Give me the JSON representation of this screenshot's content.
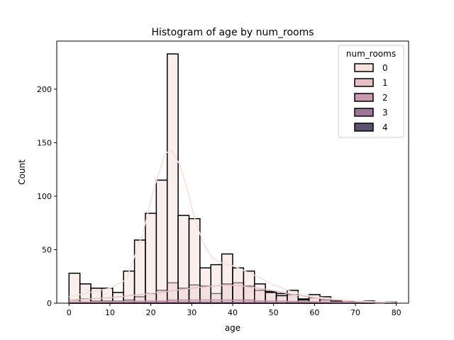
{
  "chart_data": {
    "type": "bar",
    "title": "Histogram of age by num_rooms",
    "xlabel": "age",
    "ylabel": "Count",
    "xlim": [
      -3,
      83
    ],
    "ylim": [
      0,
      245
    ],
    "xticks": [
      0,
      10,
      20,
      30,
      40,
      50,
      60,
      70,
      80
    ],
    "yticks": [
      0,
      50,
      100,
      150,
      200
    ],
    "bin_edges": [
      0,
      2.6667,
      5.3333,
      8,
      10.6667,
      13.3333,
      16,
      18.6667,
      21.3333,
      24,
      26.6667,
      29.3333,
      32,
      34.6667,
      37.3333,
      40,
      42.6667,
      45.3333,
      48,
      50.6667,
      53.3333,
      56,
      58.6667,
      61.3333,
      64,
      66.6667,
      69.3333,
      72,
      74.6667,
      77.3333,
      80
    ],
    "legend": {
      "title": "num_rooms",
      "placement": "top-right"
    },
    "series": [
      {
        "name": "0",
        "color": "#f5e0dc",
        "values": [
          28,
          18,
          14,
          14,
          10,
          30,
          59,
          84,
          115,
          233,
          82,
          79,
          33,
          36,
          46,
          33,
          30,
          18,
          10,
          7,
          12,
          3,
          8,
          6,
          1,
          1,
          1,
          2,
          0,
          1
        ],
        "kde": [
          [
            0,
            6
          ],
          [
            5,
            10
          ],
          [
            10,
            14
          ],
          [
            14,
            22
          ],
          [
            18,
            65
          ],
          [
            21,
            110
          ],
          [
            23.5,
            140
          ],
          [
            25,
            143
          ],
          [
            27,
            130
          ],
          [
            29,
            105
          ],
          [
            31,
            75
          ],
          [
            33,
            55
          ],
          [
            35,
            42
          ],
          [
            37,
            38
          ],
          [
            40,
            35
          ],
          [
            43,
            30
          ],
          [
            46,
            25
          ],
          [
            50,
            17
          ],
          [
            55,
            10
          ],
          [
            60,
            6
          ],
          [
            65,
            4
          ],
          [
            70,
            2
          ],
          [
            75,
            1
          ],
          [
            80,
            0.5
          ]
        ]
      },
      {
        "name": "1",
        "color": "#e4bfc6",
        "values": [
          3,
          4,
          2,
          2,
          2,
          3,
          6,
          9,
          12,
          19,
          14,
          17,
          16,
          9,
          18,
          19,
          16,
          12,
          11,
          9,
          8,
          4,
          5,
          3,
          2,
          1,
          1,
          1,
          0,
          0
        ],
        "kde": [
          [
            0,
            3
          ],
          [
            10,
            5
          ],
          [
            20,
            9
          ],
          [
            30,
            14
          ],
          [
            38,
            17
          ],
          [
            42,
            16
          ],
          [
            48,
            13
          ],
          [
            55,
            8
          ],
          [
            62,
            4
          ],
          [
            70,
            2
          ],
          [
            80,
            0.5
          ]
        ]
      },
      {
        "name": "2",
        "color": "#c89bb2",
        "values": [
          1,
          1,
          1,
          1,
          1,
          1,
          1,
          2,
          2,
          3,
          3,
          3,
          3,
          3,
          3,
          3,
          3,
          2,
          2,
          2,
          1,
          1,
          1,
          1,
          0,
          0,
          0,
          0,
          0,
          0
        ],
        "kde": [
          [
            0,
            1
          ],
          [
            20,
            2
          ],
          [
            35,
            3
          ],
          [
            50,
            2
          ],
          [
            65,
            1
          ],
          [
            80,
            0.3
          ]
        ]
      },
      {
        "name": "3",
        "color": "#9e7695",
        "values": [
          0,
          0,
          0,
          0,
          0,
          0,
          0,
          1,
          1,
          1,
          1,
          1,
          1,
          1,
          1,
          1,
          1,
          1,
          0,
          0,
          0,
          0,
          0,
          0,
          0,
          0,
          0,
          0,
          0,
          0
        ],
        "kde": [
          [
            0,
            0.2
          ],
          [
            30,
            0.8
          ],
          [
            60,
            0.3
          ],
          [
            80,
            0.1
          ]
        ]
      },
      {
        "name": "4",
        "color": "#5c5270",
        "values": [
          0,
          0,
          0,
          0,
          0,
          0,
          0,
          0,
          0,
          0,
          0,
          0,
          0,
          0,
          0,
          0,
          0,
          0,
          0,
          0,
          0,
          0,
          0,
          0,
          0,
          0,
          0,
          0,
          0,
          0
        ],
        "kde": [
          [
            0,
            0.1
          ],
          [
            80,
            0.1
          ]
        ]
      }
    ]
  }
}
